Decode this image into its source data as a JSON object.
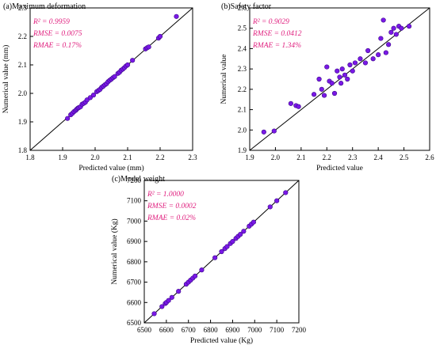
{
  "chart_data": [
    {
      "type": "scatter",
      "title": "(a)Maximum deformation",
      "xlabel": "Predicted value (mm)",
      "ylabel": "Numerical value (mm)",
      "xlim": [
        1.8,
        2.3
      ],
      "ylim": [
        1.8,
        2.3
      ],
      "xticks": [
        "1.8",
        "1.9",
        "2.0",
        "2.1",
        "2.2",
        "2.3"
      ],
      "yticks": [
        "1.8",
        "1.9",
        "2.0",
        "2.1",
        "2.2",
        "2.3"
      ],
      "xtick_values": [
        1.8,
        1.9,
        2.0,
        2.1,
        2.2,
        2.3
      ],
      "ytick_values": [
        1.8,
        1.9,
        2.0,
        2.1,
        2.2,
        2.3
      ],
      "diagonal": true,
      "stats": [
        "R² = 0.9959",
        "RMSE = 0.0075",
        "RMAE = 0.17%"
      ],
      "points": [
        {
          "x": 1.915,
          "y": 1.912
        },
        {
          "x": 1.925,
          "y": 1.925
        },
        {
          "x": 1.93,
          "y": 1.93
        },
        {
          "x": 1.935,
          "y": 1.936
        },
        {
          "x": 1.94,
          "y": 1.94
        },
        {
          "x": 1.943,
          "y": 1.944
        },
        {
          "x": 1.947,
          "y": 1.948
        },
        {
          "x": 1.95,
          "y": 1.95
        },
        {
          "x": 1.955,
          "y": 1.953
        },
        {
          "x": 1.96,
          "y": 1.962
        },
        {
          "x": 1.965,
          "y": 1.965
        },
        {
          "x": 1.97,
          "y": 1.969
        },
        {
          "x": 1.975,
          "y": 1.977
        },
        {
          "x": 1.985,
          "y": 1.985
        },
        {
          "x": 1.995,
          "y": 1.994
        },
        {
          "x": 2.005,
          "y": 2.006
        },
        {
          "x": 2.01,
          "y": 2.01
        },
        {
          "x": 2.015,
          "y": 2.014
        },
        {
          "x": 2.02,
          "y": 2.021
        },
        {
          "x": 2.025,
          "y": 2.025
        },
        {
          "x": 2.03,
          "y": 2.03
        },
        {
          "x": 2.035,
          "y": 2.034
        },
        {
          "x": 2.04,
          "y": 2.041
        },
        {
          "x": 2.045,
          "y": 2.046
        },
        {
          "x": 2.05,
          "y": 2.05
        },
        {
          "x": 2.055,
          "y": 2.055
        },
        {
          "x": 2.06,
          "y": 2.059
        },
        {
          "x": 2.07,
          "y": 2.07
        },
        {
          "x": 2.075,
          "y": 2.074
        },
        {
          "x": 2.08,
          "y": 2.081
        },
        {
          "x": 2.085,
          "y": 2.085
        },
        {
          "x": 2.09,
          "y": 2.09
        },
        {
          "x": 2.095,
          "y": 2.096
        },
        {
          "x": 2.1,
          "y": 2.1
        },
        {
          "x": 2.115,
          "y": 2.116
        },
        {
          "x": 2.155,
          "y": 2.156
        },
        {
          "x": 2.16,
          "y": 2.16
        },
        {
          "x": 2.165,
          "y": 2.163
        },
        {
          "x": 2.195,
          "y": 2.194
        },
        {
          "x": 2.2,
          "y": 2.2
        },
        {
          "x": 2.25,
          "y": 2.27
        }
      ]
    },
    {
      "type": "scatter",
      "title": "(b)Safety factor",
      "xlabel": "Predicted value",
      "ylabel": "Numerical value",
      "xlim": [
        1.9,
        2.6
      ],
      "ylim": [
        1.9,
        2.6
      ],
      "xticks": [
        "1.9",
        "2.0",
        "2.1",
        "2.2",
        "2.3",
        "2.4",
        "2.5",
        "2.6"
      ],
      "yticks": [
        "1.9",
        "2.0",
        "2.1",
        "2.2",
        "2.3",
        "2.4",
        "2.5",
        "2.6"
      ],
      "xtick_values": [
        1.9,
        2.0,
        2.1,
        2.2,
        2.3,
        2.4,
        2.5,
        2.6
      ],
      "ytick_values": [
        1.9,
        2.0,
        2.1,
        2.2,
        2.3,
        2.4,
        2.5,
        2.6
      ],
      "diagonal": true,
      "stats": [
        "R² = 0.9029",
        "RMSE = 0.0412",
        "RMAE = 1.34%"
      ],
      "points": [
        {
          "x": 1.955,
          "y": 1.99
        },
        {
          "x": 1.995,
          "y": 1.995
        },
        {
          "x": 2.06,
          "y": 2.13
        },
        {
          "x": 2.08,
          "y": 2.12
        },
        {
          "x": 2.09,
          "y": 2.115
        },
        {
          "x": 2.15,
          "y": 2.175
        },
        {
          "x": 2.17,
          "y": 2.25
        },
        {
          "x": 2.18,
          "y": 2.2
        },
        {
          "x": 2.19,
          "y": 2.17
        },
        {
          "x": 2.2,
          "y": 2.31
        },
        {
          "x": 2.21,
          "y": 2.24
        },
        {
          "x": 2.22,
          "y": 2.23
        },
        {
          "x": 2.23,
          "y": 2.18
        },
        {
          "x": 2.24,
          "y": 2.29
        },
        {
          "x": 2.25,
          "y": 2.26
        },
        {
          "x": 2.255,
          "y": 2.23
        },
        {
          "x": 2.26,
          "y": 2.3
        },
        {
          "x": 2.27,
          "y": 2.27
        },
        {
          "x": 2.28,
          "y": 2.25
        },
        {
          "x": 2.29,
          "y": 2.32
        },
        {
          "x": 2.3,
          "y": 2.29
        },
        {
          "x": 2.31,
          "y": 2.33
        },
        {
          "x": 2.33,
          "y": 2.35
        },
        {
          "x": 2.35,
          "y": 2.33
        },
        {
          "x": 2.36,
          "y": 2.39
        },
        {
          "x": 2.38,
          "y": 2.35
        },
        {
          "x": 2.4,
          "y": 2.37
        },
        {
          "x": 2.41,
          "y": 2.45
        },
        {
          "x": 2.42,
          "y": 2.54
        },
        {
          "x": 2.43,
          "y": 2.38
        },
        {
          "x": 2.44,
          "y": 2.42
        },
        {
          "x": 2.45,
          "y": 2.48
        },
        {
          "x": 2.46,
          "y": 2.5
        },
        {
          "x": 2.47,
          "y": 2.47
        },
        {
          "x": 2.48,
          "y": 2.51
        },
        {
          "x": 2.49,
          "y": 2.5
        },
        {
          "x": 2.52,
          "y": 2.51
        }
      ]
    },
    {
      "type": "scatter",
      "title": "(c)Model weight",
      "xlabel": "Predicted value (Kg)",
      "ylabel": "Numerical value (Kg)",
      "xlim": [
        6500,
        7200
      ],
      "ylim": [
        6500,
        7200
      ],
      "xticks": [
        "6500",
        "6600",
        "6700",
        "6800",
        "6900",
        "7000",
        "7100",
        "7200"
      ],
      "yticks": [
        "6500",
        "6600",
        "6700",
        "6800",
        "6900",
        "7000",
        "7100",
        "7200"
      ],
      "xtick_values": [
        6500,
        6600,
        6700,
        6800,
        6900,
        7000,
        7100,
        7200
      ],
      "ytick_values": [
        6500,
        6600,
        6700,
        6800,
        6900,
        7000,
        7100,
        7200
      ],
      "diagonal": true,
      "stats": [
        "R² = 1.0000",
        "RMSE = 0.0002",
        "RMAE = 0.02%"
      ],
      "points": [
        {
          "x": 6545,
          "y": 6545
        },
        {
          "x": 6580,
          "y": 6580
        },
        {
          "x": 6595,
          "y": 6595
        },
        {
          "x": 6600,
          "y": 6600
        },
        {
          "x": 6610,
          "y": 6610
        },
        {
          "x": 6625,
          "y": 6625
        },
        {
          "x": 6655,
          "y": 6655
        },
        {
          "x": 6690,
          "y": 6690
        },
        {
          "x": 6700,
          "y": 6700
        },
        {
          "x": 6710,
          "y": 6710
        },
        {
          "x": 6720,
          "y": 6720
        },
        {
          "x": 6730,
          "y": 6730
        },
        {
          "x": 6760,
          "y": 6760
        },
        {
          "x": 6820,
          "y": 6820
        },
        {
          "x": 6850,
          "y": 6850
        },
        {
          "x": 6865,
          "y": 6865
        },
        {
          "x": 6875,
          "y": 6875
        },
        {
          "x": 6890,
          "y": 6890
        },
        {
          "x": 6900,
          "y": 6900
        },
        {
          "x": 6915,
          "y": 6915
        },
        {
          "x": 6925,
          "y": 6925
        },
        {
          "x": 6935,
          "y": 6935
        },
        {
          "x": 6950,
          "y": 6950
        },
        {
          "x": 6975,
          "y": 6975
        },
        {
          "x": 6985,
          "y": 6985
        },
        {
          "x": 6995,
          "y": 6995
        },
        {
          "x": 7070,
          "y": 7070
        },
        {
          "x": 7100,
          "y": 7100
        },
        {
          "x": 7140,
          "y": 7140
        }
      ]
    }
  ],
  "colors": {
    "point_fill": "#7a18e6",
    "point_stroke": "#3b0a8a",
    "stats_text": "#e0207f",
    "axis": "#000000",
    "diagonal": "#000000"
  }
}
